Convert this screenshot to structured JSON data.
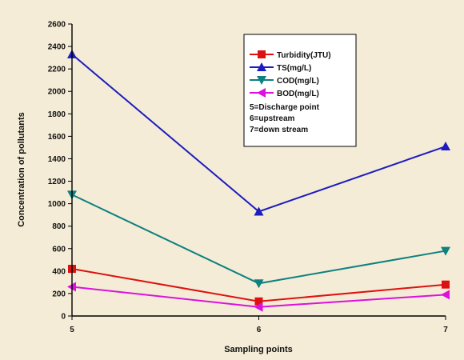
{
  "chart_data": {
    "type": "line",
    "xlabel": "Sampling points",
    "ylabel": "Concentration of pollutants",
    "categories": [
      "5",
      "6",
      "7"
    ],
    "ylim": [
      0,
      2600
    ],
    "yticks": [
      0,
      200,
      400,
      600,
      800,
      1000,
      1200,
      1400,
      1600,
      1800,
      2000,
      2200,
      2400,
      2600
    ],
    "grid": false,
    "legend_position": "top-right",
    "series": [
      {
        "name": "Turbidity(JTU)",
        "values": [
          420,
          130,
          280
        ],
        "color": "#dd1111",
        "marker": "square"
      },
      {
        "name": "TS(mg/L)",
        "values": [
          2330,
          930,
          1510
        ],
        "color": "#1c1cc0",
        "marker": "triangle-up"
      },
      {
        "name": "COD(mg/L)",
        "values": [
          1080,
          290,
          580
        ],
        "color": "#0e8080",
        "marker": "triangle-down"
      },
      {
        "name": "BOD(mg/L)",
        "values": [
          260,
          80,
          190
        ],
        "color": "#dd11dd",
        "marker": "triangle-left"
      }
    ],
    "notes": [
      "5=Discharge point",
      "6=upstream",
      "7=down stream"
    ]
  }
}
